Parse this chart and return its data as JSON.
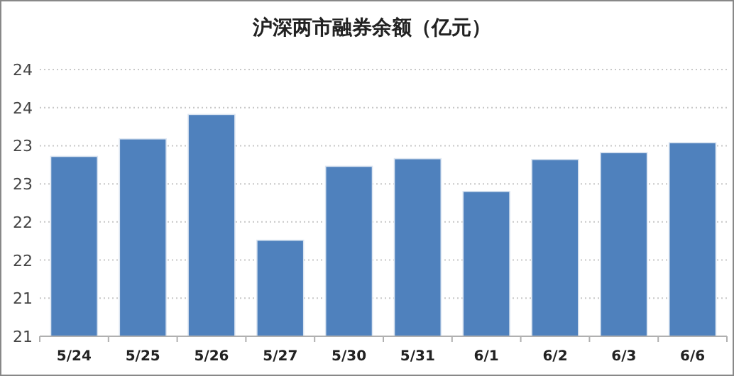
{
  "chart_data": {
    "type": "bar",
    "title": "沪深两市融券余额（亿元）",
    "categories": [
      "5/24",
      "5/25",
      "5/26",
      "5/27",
      "5/30",
      "5/31",
      "6/1",
      "6/2",
      "6/3",
      "6/6"
    ],
    "values": [
      23.36,
      23.59,
      23.91,
      22.26,
      23.23,
      23.33,
      22.9,
      23.32,
      23.41,
      23.54
    ],
    "color": "#4f81bd",
    "ylim": [
      21,
      24.5
    ],
    "yticks": [
      {
        "value": 21,
        "label": "21"
      },
      {
        "value": 21.5,
        "label": "21"
      },
      {
        "value": 22,
        "label": "22"
      },
      {
        "value": 22.5,
        "label": "22"
      },
      {
        "value": 23,
        "label": "23"
      },
      {
        "value": 23.5,
        "label": "23"
      },
      {
        "value": 24,
        "label": "24"
      },
      {
        "value": 24.5,
        "label": "24"
      }
    ],
    "grid": "y"
  }
}
